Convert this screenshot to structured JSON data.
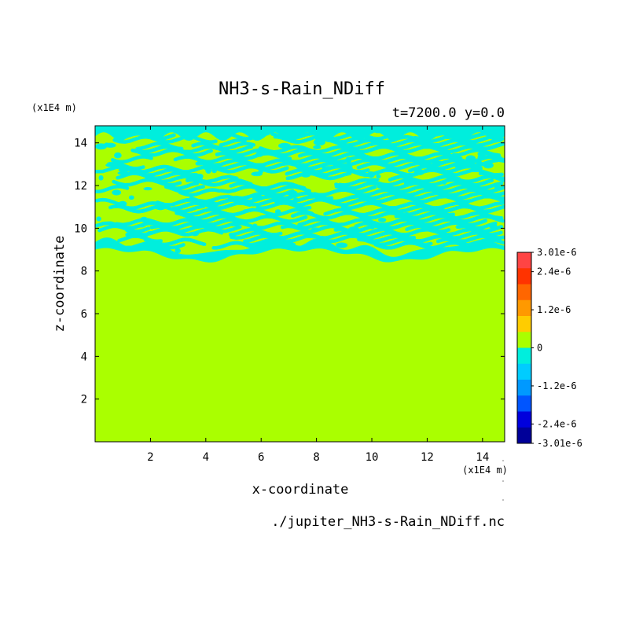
{
  "chart_data": {
    "type": "heatmap",
    "title": "NH3-s-Rain_NDiff",
    "subtitle": "t=7200.0 y=0.0",
    "xlabel": "x-coordinate",
    "ylabel": "z-coordinate",
    "x_unit": "(x1E4 m)",
    "y_unit": "(x1E4 m)",
    "xlim": [
      0,
      14.8
    ],
    "ylim": [
      0,
      14.8
    ],
    "x_ticks": [
      2,
      4,
      6,
      8,
      10,
      12,
      14
    ],
    "y_ticks": [
      2,
      4,
      6,
      8,
      10,
      12,
      14
    ],
    "footer": "./jupiter_NH3-s-Rain_NDiff.nc",
    "grid": false,
    "background_value": 0,
    "field_description_values": {
      "uniform_below_z": 8.5,
      "perturbed_layer_z": [
        8.5,
        14.8
      ],
      "dominant_level": 0,
      "perturbation_level": -6e-07
    },
    "colorbar": {
      "levels": [
        {
          "color": "#000099"
        },
        {
          "color": "#0000dd"
        },
        {
          "color": "#0055ff"
        },
        {
          "color": "#0099ff"
        },
        {
          "color": "#00ccff"
        },
        {
          "color": "#00eedd"
        },
        {
          "color": "#aaff00"
        },
        {
          "color": "#ffcc00"
        },
        {
          "color": "#ff9900"
        },
        {
          "color": "#ff6600"
        },
        {
          "color": "#ff3300"
        },
        {
          "color": "#ff4444"
        }
      ],
      "labels": [
        "3.01e-6",
        "2.4e-6",
        "1.2e-6",
        "0",
        "-1.2e-6",
        "-2.4e-6",
        "-3.01e-6"
      ],
      "label_values": [
        3.01e-06,
        2.4e-06,
        1.2e-06,
        0,
        -1.2e-06,
        -2.4e-06,
        -3.01e-06
      ]
    },
    "colors": {
      "zero_level": "#aaff00",
      "negative_level": "#00eedd"
    }
  }
}
